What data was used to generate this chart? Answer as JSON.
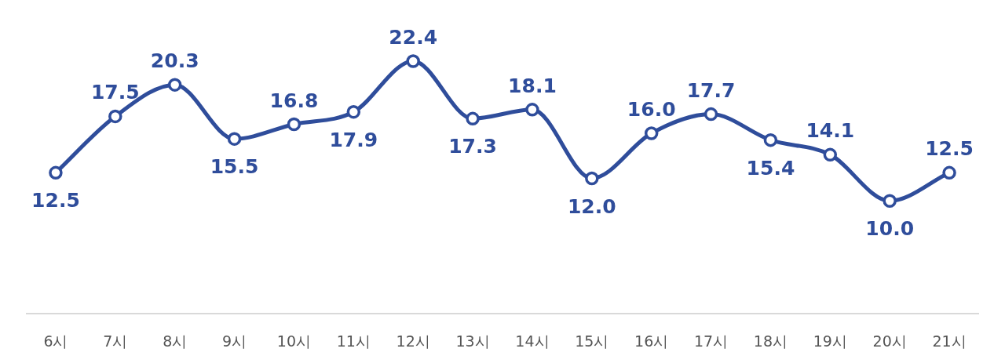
{
  "chart_data": {
    "type": "line",
    "categories": [
      "6시",
      "7시",
      "8시",
      "9시",
      "10시",
      "11시",
      "12시",
      "13시",
      "14시",
      "15시",
      "16시",
      "17시",
      "18시",
      "19시",
      "20시",
      "21시"
    ],
    "series": [
      {
        "color": "#2f4d9b",
        "values": [
          12.5,
          17.5,
          20.3,
          15.5,
          16.8,
          17.9,
          22.4,
          17.3,
          18.1,
          12.0,
          16.0,
          17.7,
          15.4,
          14.1,
          10.0,
          12.5
        ],
        "value_labels": [
          "12.5",
          "17.5",
          "20.3",
          "15.5",
          "16.8",
          "17.9",
          "22.4",
          "17.3",
          "18.1",
          "12.0",
          "16.0",
          "17.7",
          "15.4",
          "14.1",
          "10.0",
          "12.5"
        ]
      }
    ],
    "marker": "circle"
  }
}
